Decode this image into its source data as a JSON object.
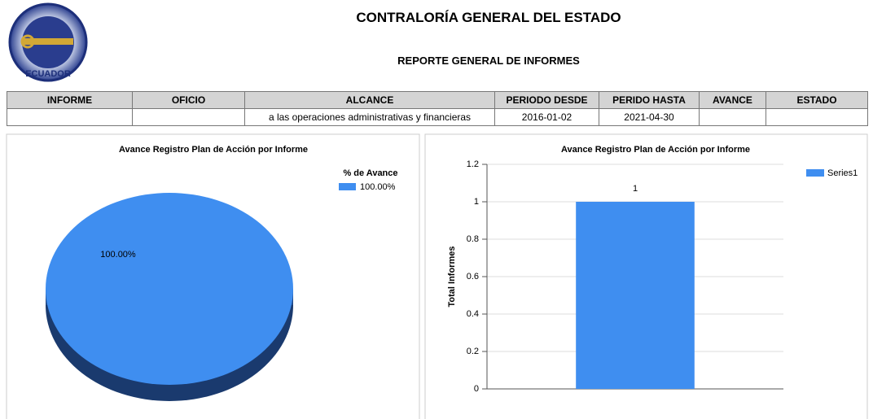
{
  "header": {
    "title": "CONTRALORÍA GENERAL DEL ESTADO",
    "subtitle": "REPORTE GENERAL DE INFORMES",
    "logo_text": "ECUADOR"
  },
  "table": {
    "columns": [
      "INFORME",
      "OFICIO",
      "ALCANCE",
      "PERIODO DESDE",
      "PERIDO HASTA",
      "AVANCE",
      "ESTADO"
    ],
    "rows": [
      [
        null,
        null,
        "a las operaciones administrativas y financieras",
        "2016-01-02",
        "2021-04-30",
        null,
        null
      ]
    ]
  },
  "chart_data": [
    {
      "type": "pie",
      "title": "Avance Registro Plan de Acción por Informe",
      "legend_title": "% de Avance",
      "legend": "top-right",
      "categories": [
        "100.00%"
      ],
      "values": [
        100
      ],
      "value_labels": [
        "100.00%"
      ],
      "colors": [
        "#3f8ef0"
      ]
    },
    {
      "type": "bar",
      "title": "Avance Registro Plan de Acción por Informe",
      "ylabel": "Total Informes",
      "legend": "top-right",
      "grid": true,
      "categories": [
        null
      ],
      "series": [
        {
          "name": "Series1",
          "color": "#3f8ef0",
          "values": [
            1
          ]
        }
      ],
      "ylim": [
        0,
        1.2
      ],
      "yticks": [
        0,
        0.2,
        0.4,
        0.6,
        0.8,
        1,
        1.2
      ]
    }
  ]
}
